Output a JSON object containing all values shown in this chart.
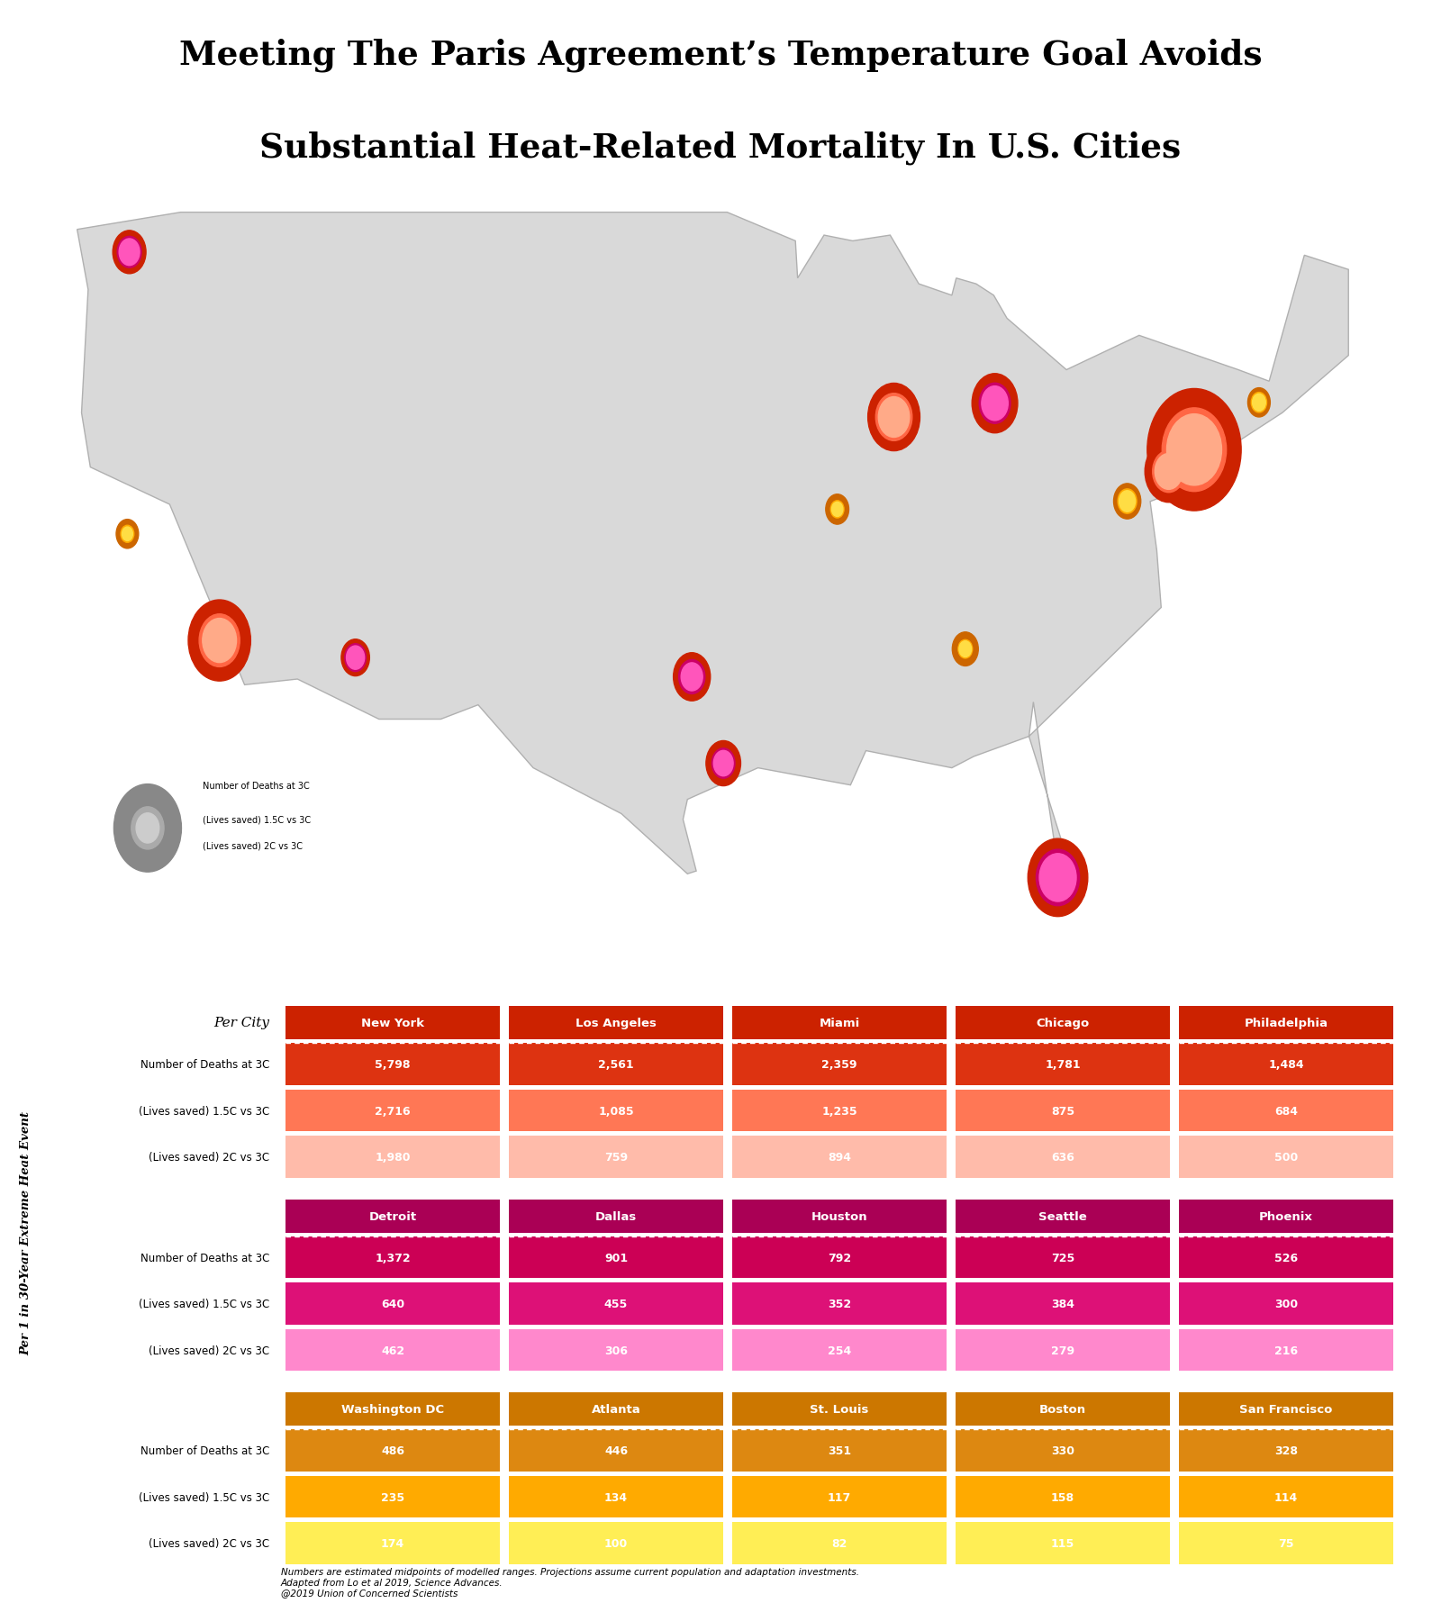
{
  "title_line1": "Meeting The Paris Agreement’s Temperature Goal Avoids",
  "title_line2": "Substantial Heat-Related Mortality In U.S. Cities",
  "background_color": "#ffffff",
  "map_facecolor": "#d9d9d9",
  "map_edgecolor": "#b0b0b0",
  "legend_label1": "Number of Deaths at 3C",
  "legend_label2": "(Lives saved) 1.5C vs 3C",
  "legend_label3": "(Lives saved) 2C vs 3C",
  "ylabel_text": "Per 1 in 30-Year Extreme Heat Event",
  "footnote": "Numbers are estimated midpoints of modelled ranges. Projections assume current population and adaptation investments.\nAdapted from Lo et al 2019, Science Advances.\n@2019 Union of Concerned Scientists",
  "cities": [
    {
      "name": "Seattle",
      "lon": -122.33,
      "lat": 47.61,
      "deaths_3c": 725,
      "saved_15": 384,
      "saved_2": 279,
      "group": "magenta"
    },
    {
      "name": "San Francisco",
      "lon": -122.42,
      "lat": 37.77,
      "deaths_3c": 328,
      "saved_15": 114,
      "saved_2": 75,
      "group": "orange"
    },
    {
      "name": "Los Angeles",
      "lon": -118.24,
      "lat": 34.05,
      "deaths_3c": 2561,
      "saved_15": 1085,
      "saved_2": 759,
      "group": "red"
    },
    {
      "name": "Phoenix",
      "lon": -112.07,
      "lat": 33.45,
      "deaths_3c": 526,
      "saved_15": 300,
      "saved_2": 216,
      "group": "magenta"
    },
    {
      "name": "Dallas",
      "lon": -96.8,
      "lat": 32.78,
      "deaths_3c": 901,
      "saved_15": 455,
      "saved_2": 306,
      "group": "magenta"
    },
    {
      "name": "Houston",
      "lon": -95.37,
      "lat": 29.76,
      "deaths_3c": 792,
      "saved_15": 352,
      "saved_2": 254,
      "group": "magenta"
    },
    {
      "name": "Miami",
      "lon": -80.19,
      "lat": 25.77,
      "deaths_3c": 2359,
      "saved_15": 1235,
      "saved_2": 894,
      "group": "magenta"
    },
    {
      "name": "Atlanta",
      "lon": -84.39,
      "lat": 33.75,
      "deaths_3c": 446,
      "saved_15": 134,
      "saved_2": 100,
      "group": "orange"
    },
    {
      "name": "St. Louis",
      "lon": -90.2,
      "lat": 38.63,
      "deaths_3c": 351,
      "saved_15": 117,
      "saved_2": 82,
      "group": "orange"
    },
    {
      "name": "Chicago",
      "lon": -87.63,
      "lat": 41.85,
      "deaths_3c": 1781,
      "saved_15": 875,
      "saved_2": 636,
      "group": "red"
    },
    {
      "name": "Detroit",
      "lon": -83.05,
      "lat": 42.33,
      "deaths_3c": 1372,
      "saved_15": 640,
      "saved_2": 462,
      "group": "magenta"
    },
    {
      "name": "Washington DC",
      "lon": -77.04,
      "lat": 38.91,
      "deaths_3c": 486,
      "saved_15": 235,
      "saved_2": 174,
      "group": "orange"
    },
    {
      "name": "Philadelphia",
      "lon": -75.16,
      "lat": 39.95,
      "deaths_3c": 1484,
      "saved_15": 684,
      "saved_2": 500,
      "group": "red"
    },
    {
      "name": "New York",
      "lon": -74.0,
      "lat": 40.71,
      "deaths_3c": 5798,
      "saved_15": 2716,
      "saved_2": 1980,
      "group": "red"
    },
    {
      "name": "Boston",
      "lon": -71.06,
      "lat": 42.36,
      "deaths_3c": 330,
      "saved_15": 158,
      "saved_2": 115,
      "group": "orange"
    }
  ],
  "colors": {
    "red": {
      "deaths": "#cc2200",
      "saved15": "#ff6644",
      "saved2": "#ffaa88"
    },
    "magenta": {
      "deaths": "#cc2200",
      "saved15": "#cc0066",
      "saved2": "#ff55bb"
    },
    "orange": {
      "deaths": "#cc6600",
      "saved15": "#ffaa00",
      "saved2": "#ffdd44"
    }
  },
  "bubble_scale": 2.8,
  "row1_cities": [
    "New York",
    "Los Angeles",
    "Miami",
    "Chicago",
    "Philadelphia"
  ],
  "row2_cities": [
    "Detroit",
    "Dallas",
    "Houston",
    "Seattle",
    "Phoenix"
  ],
  "row3_cities": [
    "Washington DC",
    "Atlanta",
    "St. Louis",
    "Boston",
    "San Francisco"
  ],
  "header_bg": {
    "red": "#cc2200",
    "magenta": "#aa0055",
    "orange": "#cc7700"
  },
  "cell_bg": {
    "red": {
      "deaths_3c": "#dd3311",
      "saved_15": "#ff7755",
      "saved_2": "#ffbbaa"
    },
    "magenta": {
      "deaths_3c": "#cc0055",
      "saved_15": "#dd1177",
      "saved_2": "#ff88cc"
    },
    "orange": {
      "deaths_3c": "#dd8811",
      "saved_15": "#ffaa00",
      "saved_2": "#ffee55"
    }
  },
  "legend_colors": {
    "deaths": "#888888",
    "saved15": "#aaaaaa",
    "saved2": "#cccccc"
  }
}
